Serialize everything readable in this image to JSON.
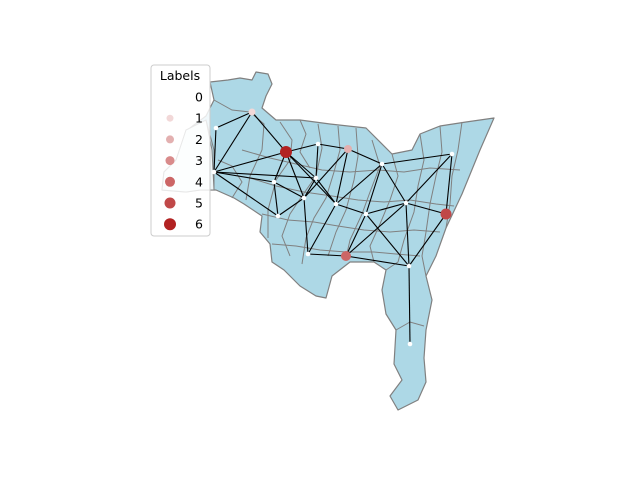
{
  "legend": {
    "title": "Labels",
    "items": [
      {
        "label": "0",
        "color": "#ffffff"
      },
      {
        "label": "1",
        "color": "#f2d8d8"
      },
      {
        "label": "2",
        "color": "#e3b0b0"
      },
      {
        "label": "3",
        "color": "#d98b8b"
      },
      {
        "label": "4",
        "color": "#cc6666"
      },
      {
        "label": "5",
        "color": "#c04848"
      },
      {
        "label": "6",
        "color": "#b22222"
      }
    ]
  },
  "colors": {
    "region_fill": "#add8e6",
    "region_border": "#808080",
    "edge": "#000000",
    "background": "#ffffff"
  },
  "graph": {
    "node_labels": [
      0,
      1,
      0,
      6,
      0,
      2,
      0,
      0,
      0,
      0,
      0,
      0,
      0,
      0,
      5,
      0,
      0,
      4,
      0,
      0,
      1
    ]
  }
}
